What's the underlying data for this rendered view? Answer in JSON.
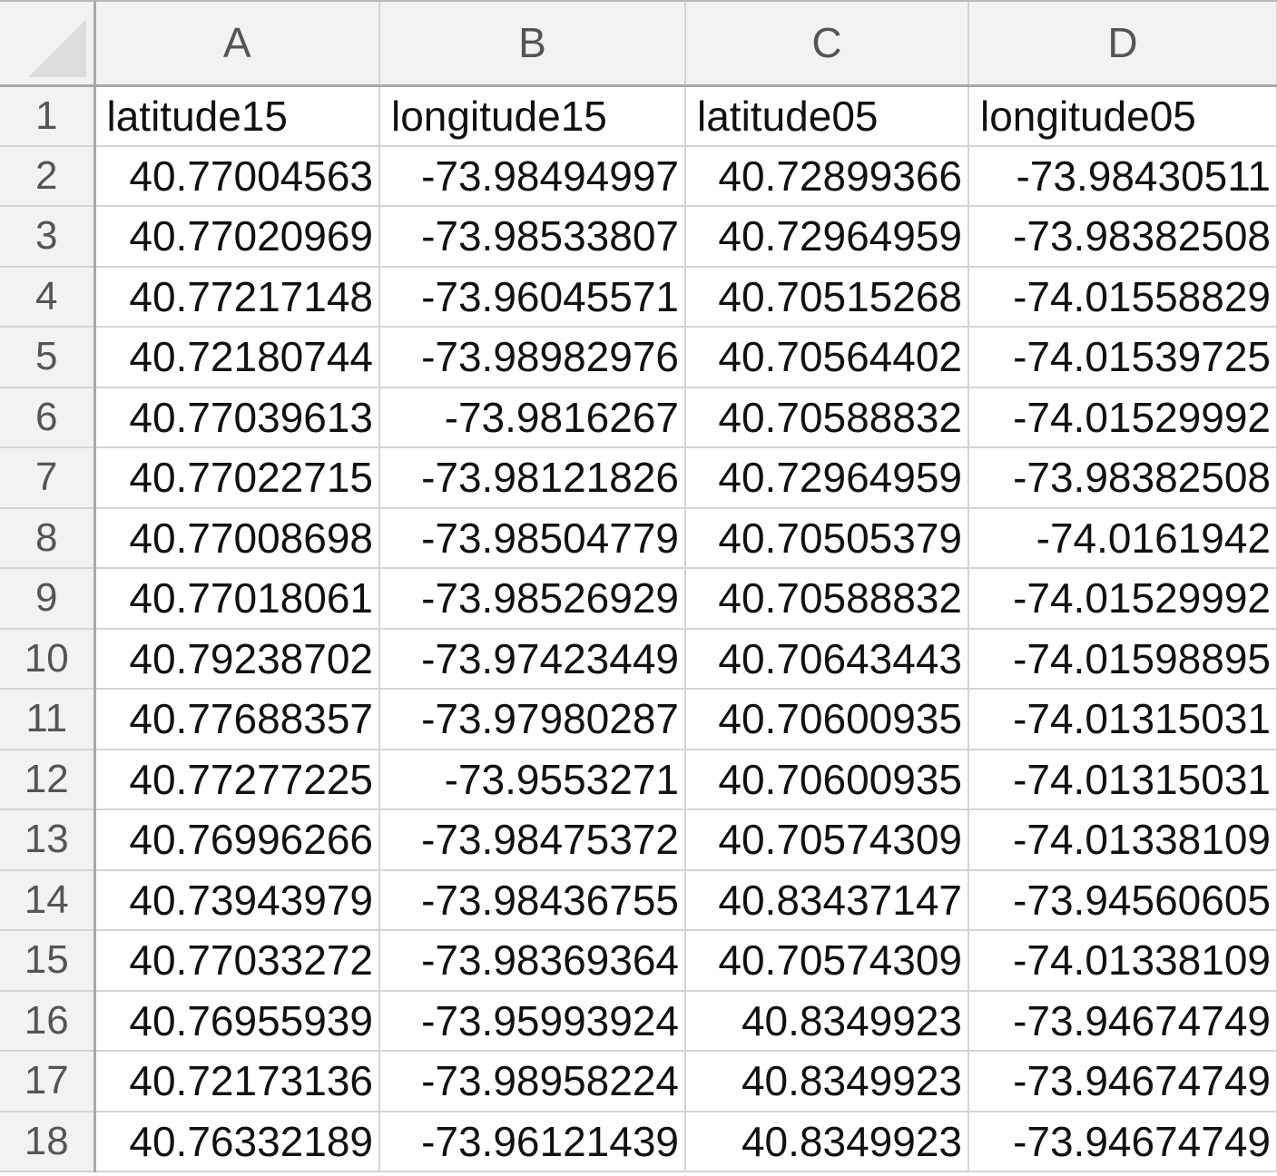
{
  "columns": [
    "A",
    "B",
    "C",
    "D"
  ],
  "rows": [
    {
      "num": "1",
      "cells": [
        "latitude15",
        "longitude15",
        "latitude05",
        "longitude05"
      ]
    },
    {
      "num": "2",
      "cells": [
        "40.77004563",
        "-73.98494997",
        "40.72899366",
        "-73.98430511"
      ]
    },
    {
      "num": "3",
      "cells": [
        "40.77020969",
        "-73.98533807",
        "40.72964959",
        "-73.98382508"
      ]
    },
    {
      "num": "4",
      "cells": [
        "40.77217148",
        "-73.96045571",
        "40.70515268",
        "-74.01558829"
      ]
    },
    {
      "num": "5",
      "cells": [
        "40.72180744",
        "-73.98982976",
        "40.70564402",
        "-74.01539725"
      ]
    },
    {
      "num": "6",
      "cells": [
        "40.77039613",
        "-73.9816267",
        "40.70588832",
        "-74.01529992"
      ]
    },
    {
      "num": "7",
      "cells": [
        "40.77022715",
        "-73.98121826",
        "40.72964959",
        "-73.98382508"
      ]
    },
    {
      "num": "8",
      "cells": [
        "40.77008698",
        "-73.98504779",
        "40.70505379",
        "-74.0161942"
      ]
    },
    {
      "num": "9",
      "cells": [
        "40.77018061",
        "-73.98526929",
        "40.70588832",
        "-74.01529992"
      ]
    },
    {
      "num": "10",
      "cells": [
        "40.79238702",
        "-73.97423449",
        "40.70643443",
        "-74.01598895"
      ]
    },
    {
      "num": "11",
      "cells": [
        "40.77688357",
        "-73.97980287",
        "40.70600935",
        "-74.01315031"
      ]
    },
    {
      "num": "12",
      "cells": [
        "40.77277225",
        "-73.9553271",
        "40.70600935",
        "-74.01315031"
      ]
    },
    {
      "num": "13",
      "cells": [
        "40.76996266",
        "-73.98475372",
        "40.70574309",
        "-74.01338109"
      ]
    },
    {
      "num": "14",
      "cells": [
        "40.73943979",
        "-73.98436755",
        "40.83437147",
        "-73.94560605"
      ]
    },
    {
      "num": "15",
      "cells": [
        "40.77033272",
        "-73.98369364",
        "40.70574309",
        "-74.01338109"
      ]
    },
    {
      "num": "16",
      "cells": [
        "40.76955939",
        "-73.95993924",
        "40.8349923",
        "-73.94674749"
      ]
    },
    {
      "num": "17",
      "cells": [
        "40.72173136",
        "-73.98958224",
        "40.8349923",
        "-73.94674749"
      ]
    },
    {
      "num": "18",
      "cells": [
        "40.76332189",
        "-73.96121439",
        "40.8349923",
        "-73.94674749"
      ]
    }
  ]
}
